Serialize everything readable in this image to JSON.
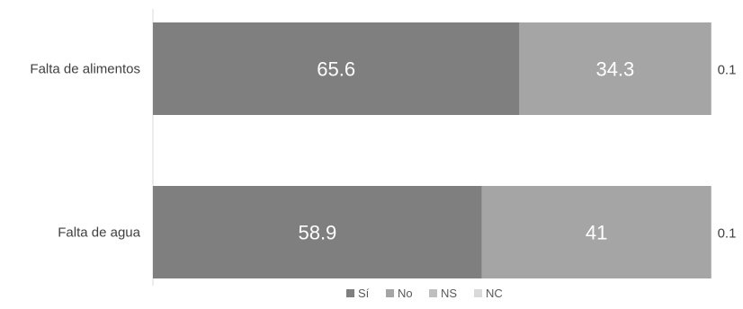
{
  "chart_data": {
    "type": "bar",
    "orientation": "horizontal",
    "stacked": true,
    "categories": [
      "Falta de alimentos",
      "Falta de agua"
    ],
    "series": [
      {
        "name": "Sí",
        "values": [
          65.6,
          58.9
        ],
        "color": "#7f7f7f",
        "labels": [
          "65.6",
          "58.9"
        ]
      },
      {
        "name": "No",
        "values": [
          34.3,
          41.0
        ],
        "color": "#a5a5a5",
        "labels": [
          "34.3",
          "41"
        ]
      },
      {
        "name": "NS",
        "values": [
          0.1,
          0.1
        ],
        "color": "#bfbfbf",
        "labels": [
          "0.1",
          "0.1"
        ]
      },
      {
        "name": "NC",
        "values": [
          0.0,
          0.0
        ],
        "color": "#d9d9d9",
        "labels": [
          "",
          ""
        ]
      }
    ],
    "xlim": [
      0,
      100
    ],
    "grid": false,
    "legend": "bottom",
    "title": "",
    "xlabel": "",
    "ylabel": ""
  }
}
